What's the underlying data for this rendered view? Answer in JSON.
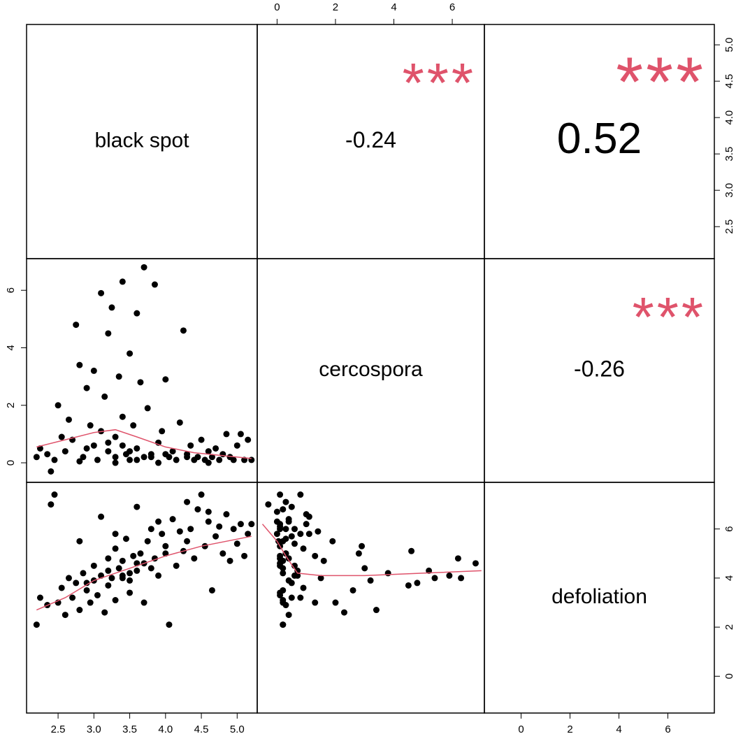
{
  "chart_data": {
    "type": "pairs",
    "point_color": "#000000",
    "smooth_color": "#DF536B",
    "star_color": "#DF536B",
    "variables": [
      {
        "name": "black spot",
        "lim": [
          2.06,
          5.28
        ],
        "ticks": [
          2.5,
          {
            "value": 3,
            "label": "3.0"
          },
          3.5,
          {
            "value": 4,
            "label": "4.0"
          },
          4.5,
          {
            "value": 5,
            "label": "5.0"
          }
        ],
        "values": [
          2.2,
          2.25,
          2.35,
          2.45,
          2.4,
          2.5,
          2.55,
          2.6,
          2.65,
          2.7,
          2.75,
          2.8,
          2.85,
          2.9,
          2.95,
          3.0,
          3.0,
          3.05,
          3.1,
          3.1,
          3.15,
          3.2,
          3.2,
          3.25,
          3.3,
          3.3,
          3.35,
          3.4,
          3.4,
          3.45,
          3.5,
          3.5,
          3.55,
          3.6,
          3.6,
          3.65,
          3.7,
          3.7,
          3.75,
          3.8,
          3.85,
          3.9,
          3.95,
          4.0,
          4.05,
          4.1,
          4.15,
          4.2,
          4.25,
          4.3,
          4.35,
          4.4,
          4.45,
          4.5,
          4.55,
          4.6,
          4.65,
          4.7,
          4.75,
          4.8,
          4.85,
          4.9,
          4.95,
          5.0,
          5.05,
          5.1,
          5.15,
          5.2,
          3.2,
          3.5,
          3.8,
          4.0,
          3.6,
          2.9,
          4.3,
          3.4,
          3.3,
          3.9,
          2.8,
          4.6
        ]
      },
      {
        "name": "cercospora",
        "lim": [
          -0.68,
          7.1
        ],
        "ticks": [
          0,
          2,
          4,
          6
        ],
        "values": [
          0.2,
          0.5,
          0.3,
          0.1,
          -0.3,
          2.0,
          0.9,
          0.4,
          1.5,
          0.8,
          4.8,
          3.4,
          0.2,
          2.6,
          1.3,
          0.6,
          3.2,
          0.1,
          5.9,
          1.1,
          2.3,
          0.4,
          4.5,
          5.4,
          0.9,
          0.2,
          3.0,
          6.3,
          1.6,
          0.3,
          3.8,
          0.1,
          1.3,
          5.2,
          0.5,
          2.8,
          6.8,
          0.2,
          1.9,
          0.3,
          6.2,
          0.7,
          1.1,
          2.9,
          0.2,
          0.4,
          0.1,
          1.4,
          4.6,
          0.3,
          0.6,
          0.1,
          0.2,
          0.8,
          0.1,
          0.4,
          0.2,
          0.5,
          0.1,
          0.3,
          1.0,
          0.2,
          0.1,
          0.6,
          1.0,
          0.1,
          0.8,
          0.1,
          0.7,
          0.4,
          0.2,
          0.3,
          0.1,
          0.5,
          0.2,
          0.6,
          0.0,
          0.0,
          0.05,
          0.0
        ]
      },
      {
        "name": "defoliation",
        "lim": [
          -1.5,
          7.9
        ],
        "ticks": [
          0,
          2,
          4,
          6
        ],
        "values": [
          2.1,
          3.2,
          2.9,
          7.4,
          7.0,
          3.0,
          3.6,
          2.5,
          4.0,
          3.2,
          3.8,
          2.7,
          4.2,
          3.5,
          3.0,
          4.5,
          3.9,
          3.3,
          4.1,
          6.5,
          2.6,
          4.8,
          3.7,
          4.0,
          5.2,
          3.1,
          4.4,
          4.0,
          4.7,
          5.6,
          4.2,
          3.4,
          4.9,
          4.3,
          6.9,
          5.0,
          4.6,
          3.0,
          5.5,
          6.0,
          4.8,
          4.1,
          5.8,
          5.3,
          2.1,
          6.4,
          4.5,
          5.9,
          5.1,
          7.1,
          6.0,
          4.8,
          6.8,
          7.4,
          5.3,
          6.3,
          3.5,
          5.7,
          6.1,
          5.0,
          6.6,
          4.7,
          6.0,
          5.4,
          6.2,
          4.9,
          5.8,
          6.2,
          4.3,
          3.9,
          4.4,
          5.0,
          4.6,
          3.8,
          5.5,
          4.1,
          5.8,
          6.3,
          5.5,
          6.7
        ]
      }
    ],
    "correlations": [
      {
        "value": -0.24,
        "stars": "***"
      },
      {
        "value": 0.52,
        "stars": "***"
      },
      {
        "value": -0.26,
        "stars": "***"
      }
    ],
    "smooth": [
      {
        "x": [
          2.2,
          2.6,
          3.0,
          3.3,
          3.6,
          4.0,
          4.4,
          4.8,
          5.2
        ],
        "y": [
          0.55,
          0.8,
          1.05,
          1.15,
          0.9,
          0.55,
          0.35,
          0.25,
          0.15
        ]
      },
      {
        "x": [
          2.2,
          2.6,
          3.0,
          3.5,
          4.0,
          4.5,
          5.2
        ],
        "y": [
          2.7,
          3.2,
          3.9,
          4.4,
          4.9,
          5.3,
          5.7
        ]
      },
      {
        "x": [
          -0.5,
          0,
          0.3,
          0.7,
          1.5,
          3,
          5,
          7
        ],
        "y": [
          6.2,
          5.5,
          4.9,
          4.2,
          4.1,
          4.1,
          4.2,
          4.3
        ]
      }
    ]
  }
}
